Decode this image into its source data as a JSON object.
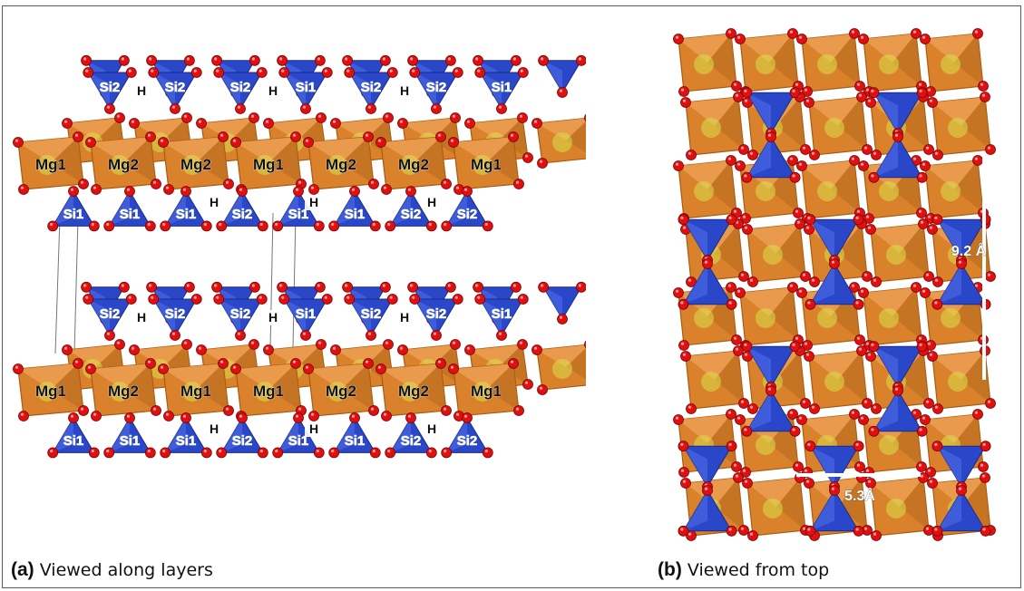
{
  "panel_a": {
    "letter": "(a)",
    "caption": "Viewed along layers",
    "octahedra_top_row": [
      "Mg1",
      "Mg2",
      "Mg2",
      "Mg1",
      "Mg2",
      "Mg2",
      "Mg1"
    ],
    "octahedra_bottom_row": [
      "Mg1",
      "Mg2",
      "Mg1",
      "Mg1",
      "Mg2",
      "Mg2",
      "Mg1"
    ],
    "tetra_upper_layer1": [
      "Si2",
      "Si2",
      "Si2",
      "Si1",
      "Si2",
      "Si2",
      "Si1"
    ],
    "tetra_lower_layer1": [
      "Si1",
      "Si1",
      "Si1",
      "Si2",
      "Si1",
      "Si1",
      "Si2",
      "Si2"
    ],
    "tetra_upper_layer2": [
      "Si2",
      "Si2",
      "Si2",
      "Si1",
      "Si2",
      "Si2",
      "Si1"
    ],
    "tetra_lower_layer2": [
      "Si1",
      "Si1",
      "Si1",
      "Si2",
      "Si1",
      "Si1",
      "Si2",
      "Si2"
    ],
    "hydrogen_label": "H"
  },
  "panel_b": {
    "letter": "(b)",
    "caption": "Viewed from top",
    "vertical_dimension": "9.2 Å",
    "horizontal_dimension": "5.3Å"
  },
  "colors": {
    "octahedron": "#d9822b",
    "octahedron_dark": "#a85a14",
    "tetrahedron": "#2b47c9",
    "tetrahedron_dark": "#1a2c86",
    "oxygen": "#e01010",
    "mg_center": "#d8e04a"
  }
}
